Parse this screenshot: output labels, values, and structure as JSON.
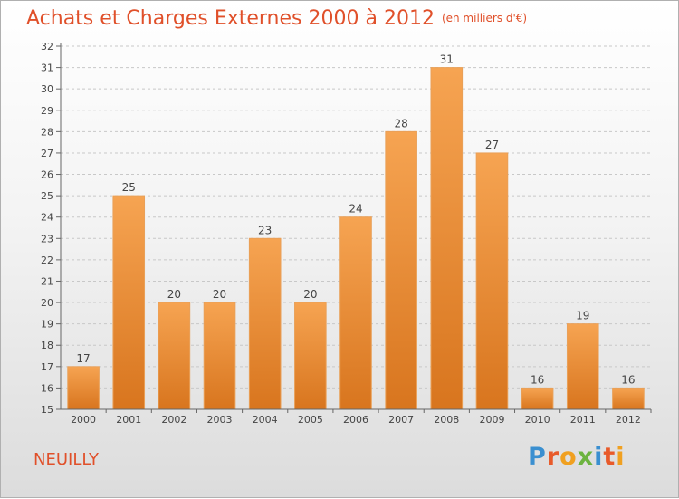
{
  "title": "Achats et Charges Externes 2000 à 2012",
  "subtitle": "(en milliers d'€)",
  "place_name": "NEUILLY",
  "logo": {
    "text": "Proxiti",
    "letters": [
      {
        "ch": "P",
        "color": "#3a8fd0"
      },
      {
        "ch": "r",
        "color": "#e85a2a"
      },
      {
        "ch": "o",
        "color": "#f0a020"
      },
      {
        "ch": "x",
        "color": "#6cb33f"
      },
      {
        "ch": "i",
        "color": "#3a8fd0"
      },
      {
        "ch": "t",
        "color": "#e85a2a"
      },
      {
        "ch": "i",
        "color": "#f0a020"
      }
    ]
  },
  "colors": {
    "title": "#e0502a",
    "bar_top": "#f6a452",
    "bar_bottom": "#d8751e",
    "grid": "#c8c8c8"
  },
  "chart_data": {
    "type": "bar",
    "categories": [
      "2000",
      "2001",
      "2002",
      "2003",
      "2004",
      "2005",
      "2006",
      "2007",
      "2008",
      "2009",
      "2010",
      "2011",
      "2012"
    ],
    "values": [
      17,
      25,
      20,
      20,
      23,
      20,
      24,
      28,
      31,
      27,
      16,
      19,
      16
    ],
    "ylim": [
      15,
      32
    ],
    "yticks": [
      15,
      16,
      17,
      18,
      19,
      20,
      21,
      22,
      23,
      24,
      25,
      26,
      27,
      28,
      29,
      30,
      31,
      32
    ],
    "grid": "horizontal dashed"
  }
}
